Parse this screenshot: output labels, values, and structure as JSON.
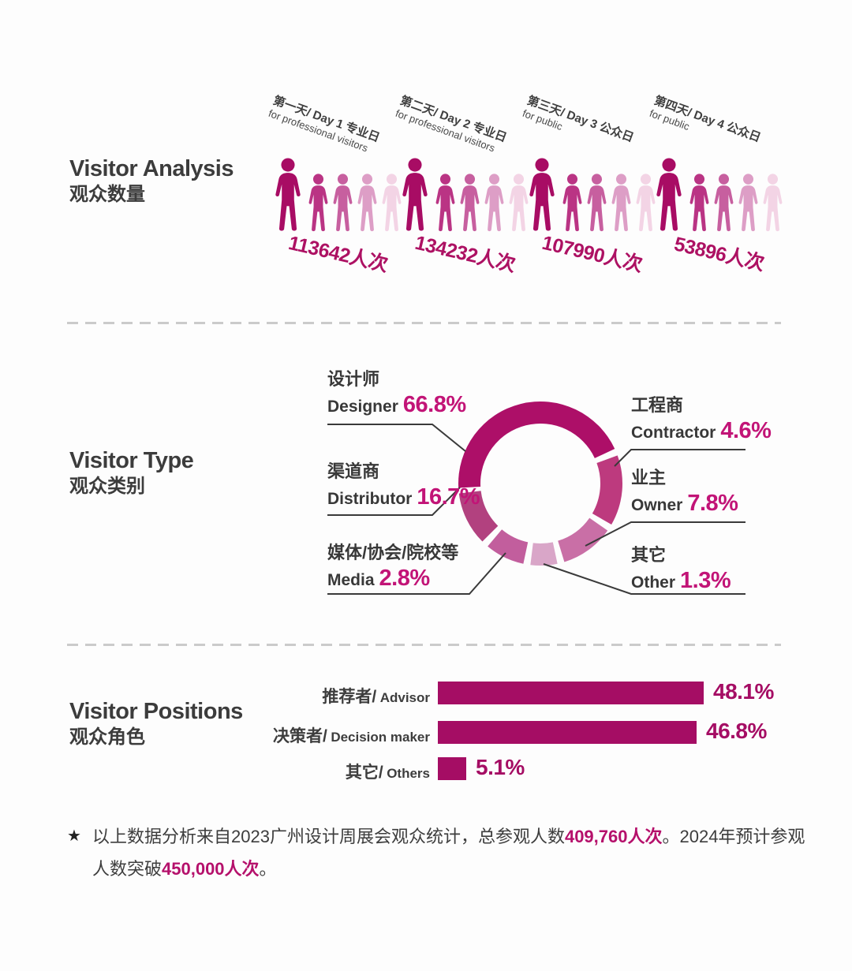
{
  "colors": {
    "magenta": "#ad0f68",
    "pct_accent": "#c21477",
    "bar": "#a50d64",
    "text_dark": "#3a3a3a",
    "divider": "#cbcbcb",
    "people": [
      "#a80c64",
      "#ba3484",
      "#c75f9f",
      "#dd9ec6",
      "#f3d4e5"
    ]
  },
  "visitor_analysis": {
    "title": "Visitor Analysis",
    "subtitle": "观众数量",
    "days": [
      {
        "title": "第一天/ Day 1 专业日",
        "subtitle": "for professional visitors",
        "count": "113642",
        "unit": "人次"
      },
      {
        "title": "第二天/ Day 2 专业日",
        "subtitle": "for professional visitors",
        "count": "134232",
        "unit": "人次"
      },
      {
        "title": "第三天/ Day 3 公众日",
        "subtitle": "for public",
        "count": "107990",
        "unit": "人次"
      },
      {
        "title": "第四天/ Day 4 公众日",
        "subtitle": "for public",
        "count": "53896",
        "unit": "人次"
      }
    ]
  },
  "visitor_type": {
    "title": "Visitor Type",
    "subtitle": "观众类别",
    "segments": [
      {
        "zh": "设计师",
        "en": "Designer",
        "pct": "66.8%",
        "value": 66.8,
        "color": "#ad0f68",
        "start": 267,
        "end": 425
      },
      {
        "zh": "工程商",
        "en": "Contractor",
        "pct": "4.6%",
        "value": 4.6,
        "color": "#bd3a7e",
        "start": 70,
        "end": 120
      },
      {
        "zh": "渠道商",
        "en": "Distributor",
        "pct": "16.7%",
        "value": 16.7,
        "color": "#b2417f",
        "start": 225,
        "end": 263
      },
      {
        "zh": "业主",
        "en": "Owner",
        "pct": "7.8%",
        "value": 7.8,
        "color": "#c96fa6",
        "start": 125,
        "end": 163
      },
      {
        "zh": "媒体/协会/院校等",
        "en": "Media",
        "pct": "2.8%",
        "value": 2.8,
        "color": "#c25e9d",
        "start": 192,
        "end": 220
      },
      {
        "zh": "其它",
        "en": "Other",
        "pct": "1.3%",
        "value": 1.3,
        "color": "#d9a6c8",
        "start": 168,
        "end": 187
      }
    ]
  },
  "visitor_positions": {
    "title": "Visitor Positions",
    "subtitle": "观众角色",
    "bars": [
      {
        "zh": "推荐者/",
        "en": "Advisor",
        "value": 48.1,
        "label": "48.1%"
      },
      {
        "zh": "决策者/",
        "en": "Decision maker",
        "value": 46.8,
        "label": "46.8%"
      },
      {
        "zh": "其它/",
        "en": "Others",
        "value": 5.1,
        "label": "5.1%"
      }
    ]
  },
  "footnote": {
    "star": "★",
    "part1": "以上数据分析来自2023广州设计周展会观众统计，总参观人数",
    "strong1": "409,760人次",
    "part2": "。2024年预计参观人数突破",
    "strong2": "450,000人次",
    "part3": "。"
  },
  "chart_data": [
    {
      "type": "bar",
      "variant": "pictogram",
      "title": "Visitor Analysis 观众数量",
      "categories": [
        "第一天/ Day 1 专业日 for professional visitors",
        "第二天/ Day 2 专业日 for professional visitors",
        "第三天/ Day 3 公众日 for public",
        "第四天/ Day 4 公众日 for public"
      ],
      "values": [
        113642,
        134232,
        107990,
        53896
      ],
      "unit": "人次"
    },
    {
      "type": "pie",
      "variant": "donut",
      "title": "Visitor Type 观众类别",
      "labels": [
        "设计师 Designer",
        "渠道商 Distributor",
        "媒体/协会/院校等 Media",
        "工程商 Contractor",
        "业主 Owner",
        "其它 Other"
      ],
      "values": [
        66.8,
        16.7,
        2.8,
        4.6,
        7.8,
        1.3
      ],
      "unit": "%",
      "legend_position": "callout-labels"
    },
    {
      "type": "bar",
      "orientation": "horizontal",
      "title": "Visitor Positions 观众角色",
      "categories": [
        "推荐者/ Advisor",
        "决策者/ Decision maker",
        "其它/ Others"
      ],
      "values": [
        48.1,
        46.8,
        5.1
      ],
      "unit": "%",
      "xlim": [
        0,
        100
      ],
      "grid": false
    }
  ]
}
